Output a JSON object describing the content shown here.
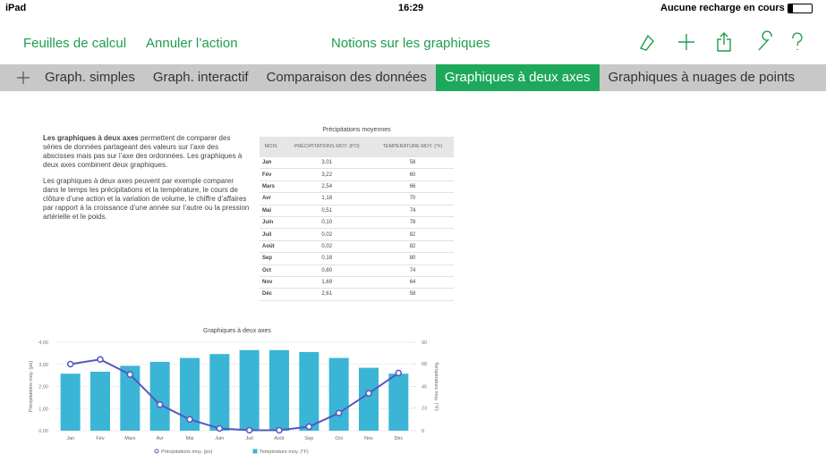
{
  "status_bar": {
    "device": "iPad",
    "time": "16:29",
    "battery": "Aucune recharge en cours"
  },
  "toolbar": {
    "left": [
      "Feuilles de calcul",
      "Annuler l’action"
    ],
    "title": "Notions sur les graphiques"
  },
  "tabs": [
    "Graph. simples",
    "Graph. interactif",
    "Comparaison des données",
    "Graphiques à deux axes",
    "Graphiques à nuages de points"
  ],
  "active_tab": 3,
  "intro": {
    "bold": "Les graphiques à deux axes",
    "text": " permettent de comparer des séries de données partageant des valeurs sur l’axe des abscisses mais pas sur l’axe des ordonnées. Les graphiques à deux axes combinent deux graphiques.",
    "paragraph2": "Les graphiques à deux axes peuvent par exemple comparer dans le temps les précipitations et la température, le cours de clôture d’une action et la variation de volume, le chiffre d’affaires par rapport à la croissance d’une année sur l’autre ou la pression artérielle et le poids."
  },
  "table": {
    "title": "Précipitations moyennes",
    "header": [
      "MOIS",
      "PRÉCIPITATIONS MOY. (PO)",
      "TEMPÉRATURE MOY. (°F)"
    ],
    "rows": [
      [
        "Jan",
        "3,01",
        "58"
      ],
      [
        "Fév",
        "3,22",
        "60"
      ],
      [
        "Mars",
        "2,54",
        "66"
      ],
      [
        "Avr",
        "1,18",
        "70"
      ],
      [
        "Mai",
        "0,51",
        "74"
      ],
      [
        "Juin",
        "0,10",
        "78"
      ],
      [
        "Juil",
        "0,02",
        "82"
      ],
      [
        "Août",
        "0,02",
        "82"
      ],
      [
        "Sep",
        "0,18",
        "80"
      ],
      [
        "Oct",
        "0,80",
        "74"
      ],
      [
        "Nov",
        "1,69",
        "64"
      ],
      [
        "Déc",
        "2,61",
        "58"
      ]
    ]
  },
  "chart_data": {
    "type": "combo",
    "title": "Graphiques à deux axes",
    "categories": [
      "Jan",
      "Fév",
      "Mars",
      "Avr",
      "Mai",
      "Juin",
      "Juil",
      "Août",
      "Sep",
      "Oct",
      "Nov",
      "Déc"
    ],
    "ylabel": "Précipitations moy. (po)",
    "y2label": "Température moy. (°F)",
    "ylim": [
      0,
      4
    ],
    "yticks": [
      {
        "value": 0,
        "label": "0,00"
      },
      {
        "value": 1,
        "label": "1,00"
      },
      {
        "value": 2,
        "label": "2,00"
      },
      {
        "value": 3,
        "label": "3,00"
      },
      {
        "value": 4,
        "label": "4,00"
      }
    ],
    "y2lim": [
      0,
      90
    ],
    "y2ticks": [
      0,
      23,
      45,
      68,
      90
    ],
    "grid": true,
    "series": [
      {
        "name": "Température moy. (°F)",
        "type": "bar",
        "axis": "y2",
        "color": "#3ab5d6",
        "values": [
          58,
          60,
          66,
          70,
          74,
          78,
          82,
          82,
          80,
          74,
          64,
          58
        ]
      },
      {
        "name": "Précipitations moy. (po)",
        "type": "line",
        "color": "#5457c0",
        "values": [
          3.01,
          3.22,
          2.54,
          1.18,
          0.51,
          0.1,
          0.02,
          0.02,
          0.18,
          0.8,
          1.69,
          2.61
        ]
      }
    ]
  }
}
